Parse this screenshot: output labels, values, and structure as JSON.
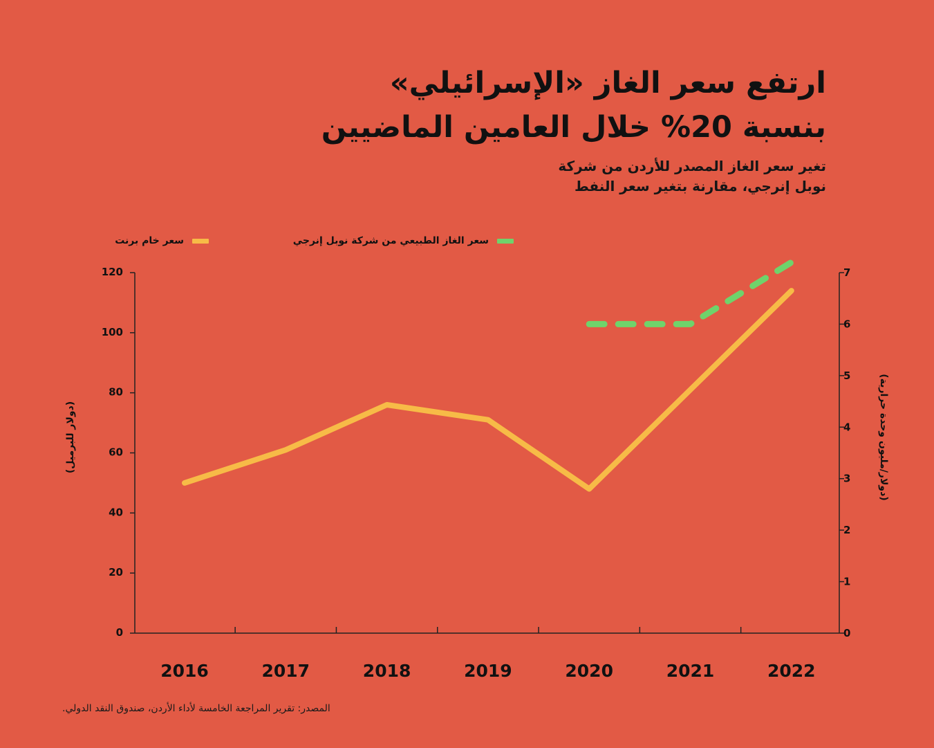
{
  "headline": {
    "line1": "ارتفع سعر الغاز «الإسرائيلي»",
    "line2": "بنسبة 20% خلال العامين الماضيين"
  },
  "subtitle": {
    "line1": "تغير سعر الغاز المصدر للأردن من شركة",
    "line2": "نوبل إنرجي، مقارنة بتغير سعر النفط"
  },
  "legend": {
    "brent": "سعر خام برنت",
    "gas": "سعر الغاز الطبيعي من شركة نوبل إنرجي"
  },
  "axes": {
    "left_title": "(دولار للبرميل)",
    "right_title": "(دولار/مليون وحدة حرارية)"
  },
  "source": "المصدر: تقرير المراجعة الخامسة لأداء الأردن، صندوق النقد الدولي.",
  "colors": {
    "background": "#e25a45",
    "brent": "#f7bb47",
    "gas": "#6fd36b",
    "axis": "#222222"
  },
  "chart_data": {
    "type": "line",
    "categories": [
      "2016",
      "2017",
      "2018",
      "2019",
      "2020",
      "2021",
      "2022"
    ],
    "left_axis": {
      "ylim": [
        0,
        120
      ],
      "ticks": [
        "0",
        "20",
        "40",
        "60",
        "80",
        "100",
        "120"
      ]
    },
    "right_axis": {
      "ylim": [
        0,
        7
      ],
      "ticks": [
        "0",
        "1",
        "2",
        "3",
        "4",
        "5",
        "6",
        "7"
      ]
    },
    "series": [
      {
        "name": "سعر خام برنت",
        "axis": "left",
        "style": "solid",
        "values": [
          50,
          61,
          76,
          71,
          48,
          81,
          114
        ]
      },
      {
        "name": "سعر الغاز الطبيعي من شركة نوبل إنرجي",
        "axis": "right",
        "style": "dashed",
        "values": [
          null,
          null,
          null,
          null,
          6,
          6,
          7.2
        ]
      }
    ]
  }
}
